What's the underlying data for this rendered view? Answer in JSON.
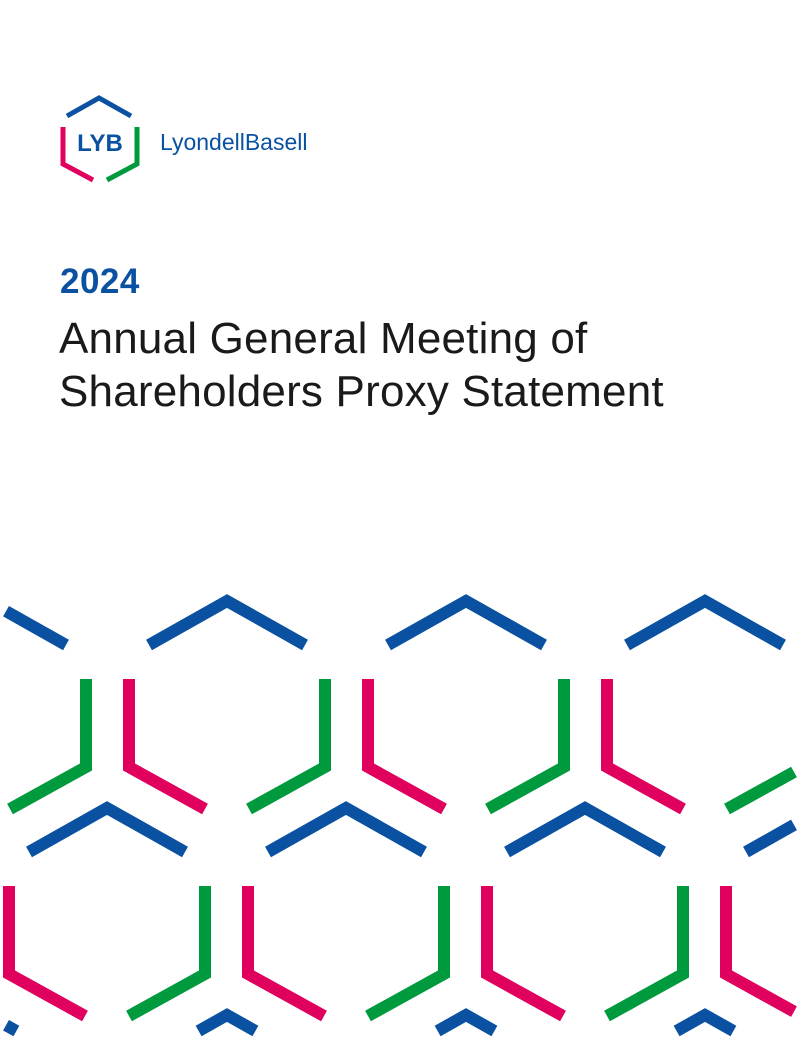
{
  "logo": {
    "mark": "LYB",
    "wordmark": "LyondellBasell"
  },
  "cover": {
    "year": "2024",
    "title_line1": "Annual General Meeting of",
    "title_line2": "Shareholders Proxy Statement"
  },
  "colors": {
    "blue": "#0a51a1",
    "green": "#009a3e",
    "pink": "#e0005e",
    "text": "#1a1a1a"
  }
}
